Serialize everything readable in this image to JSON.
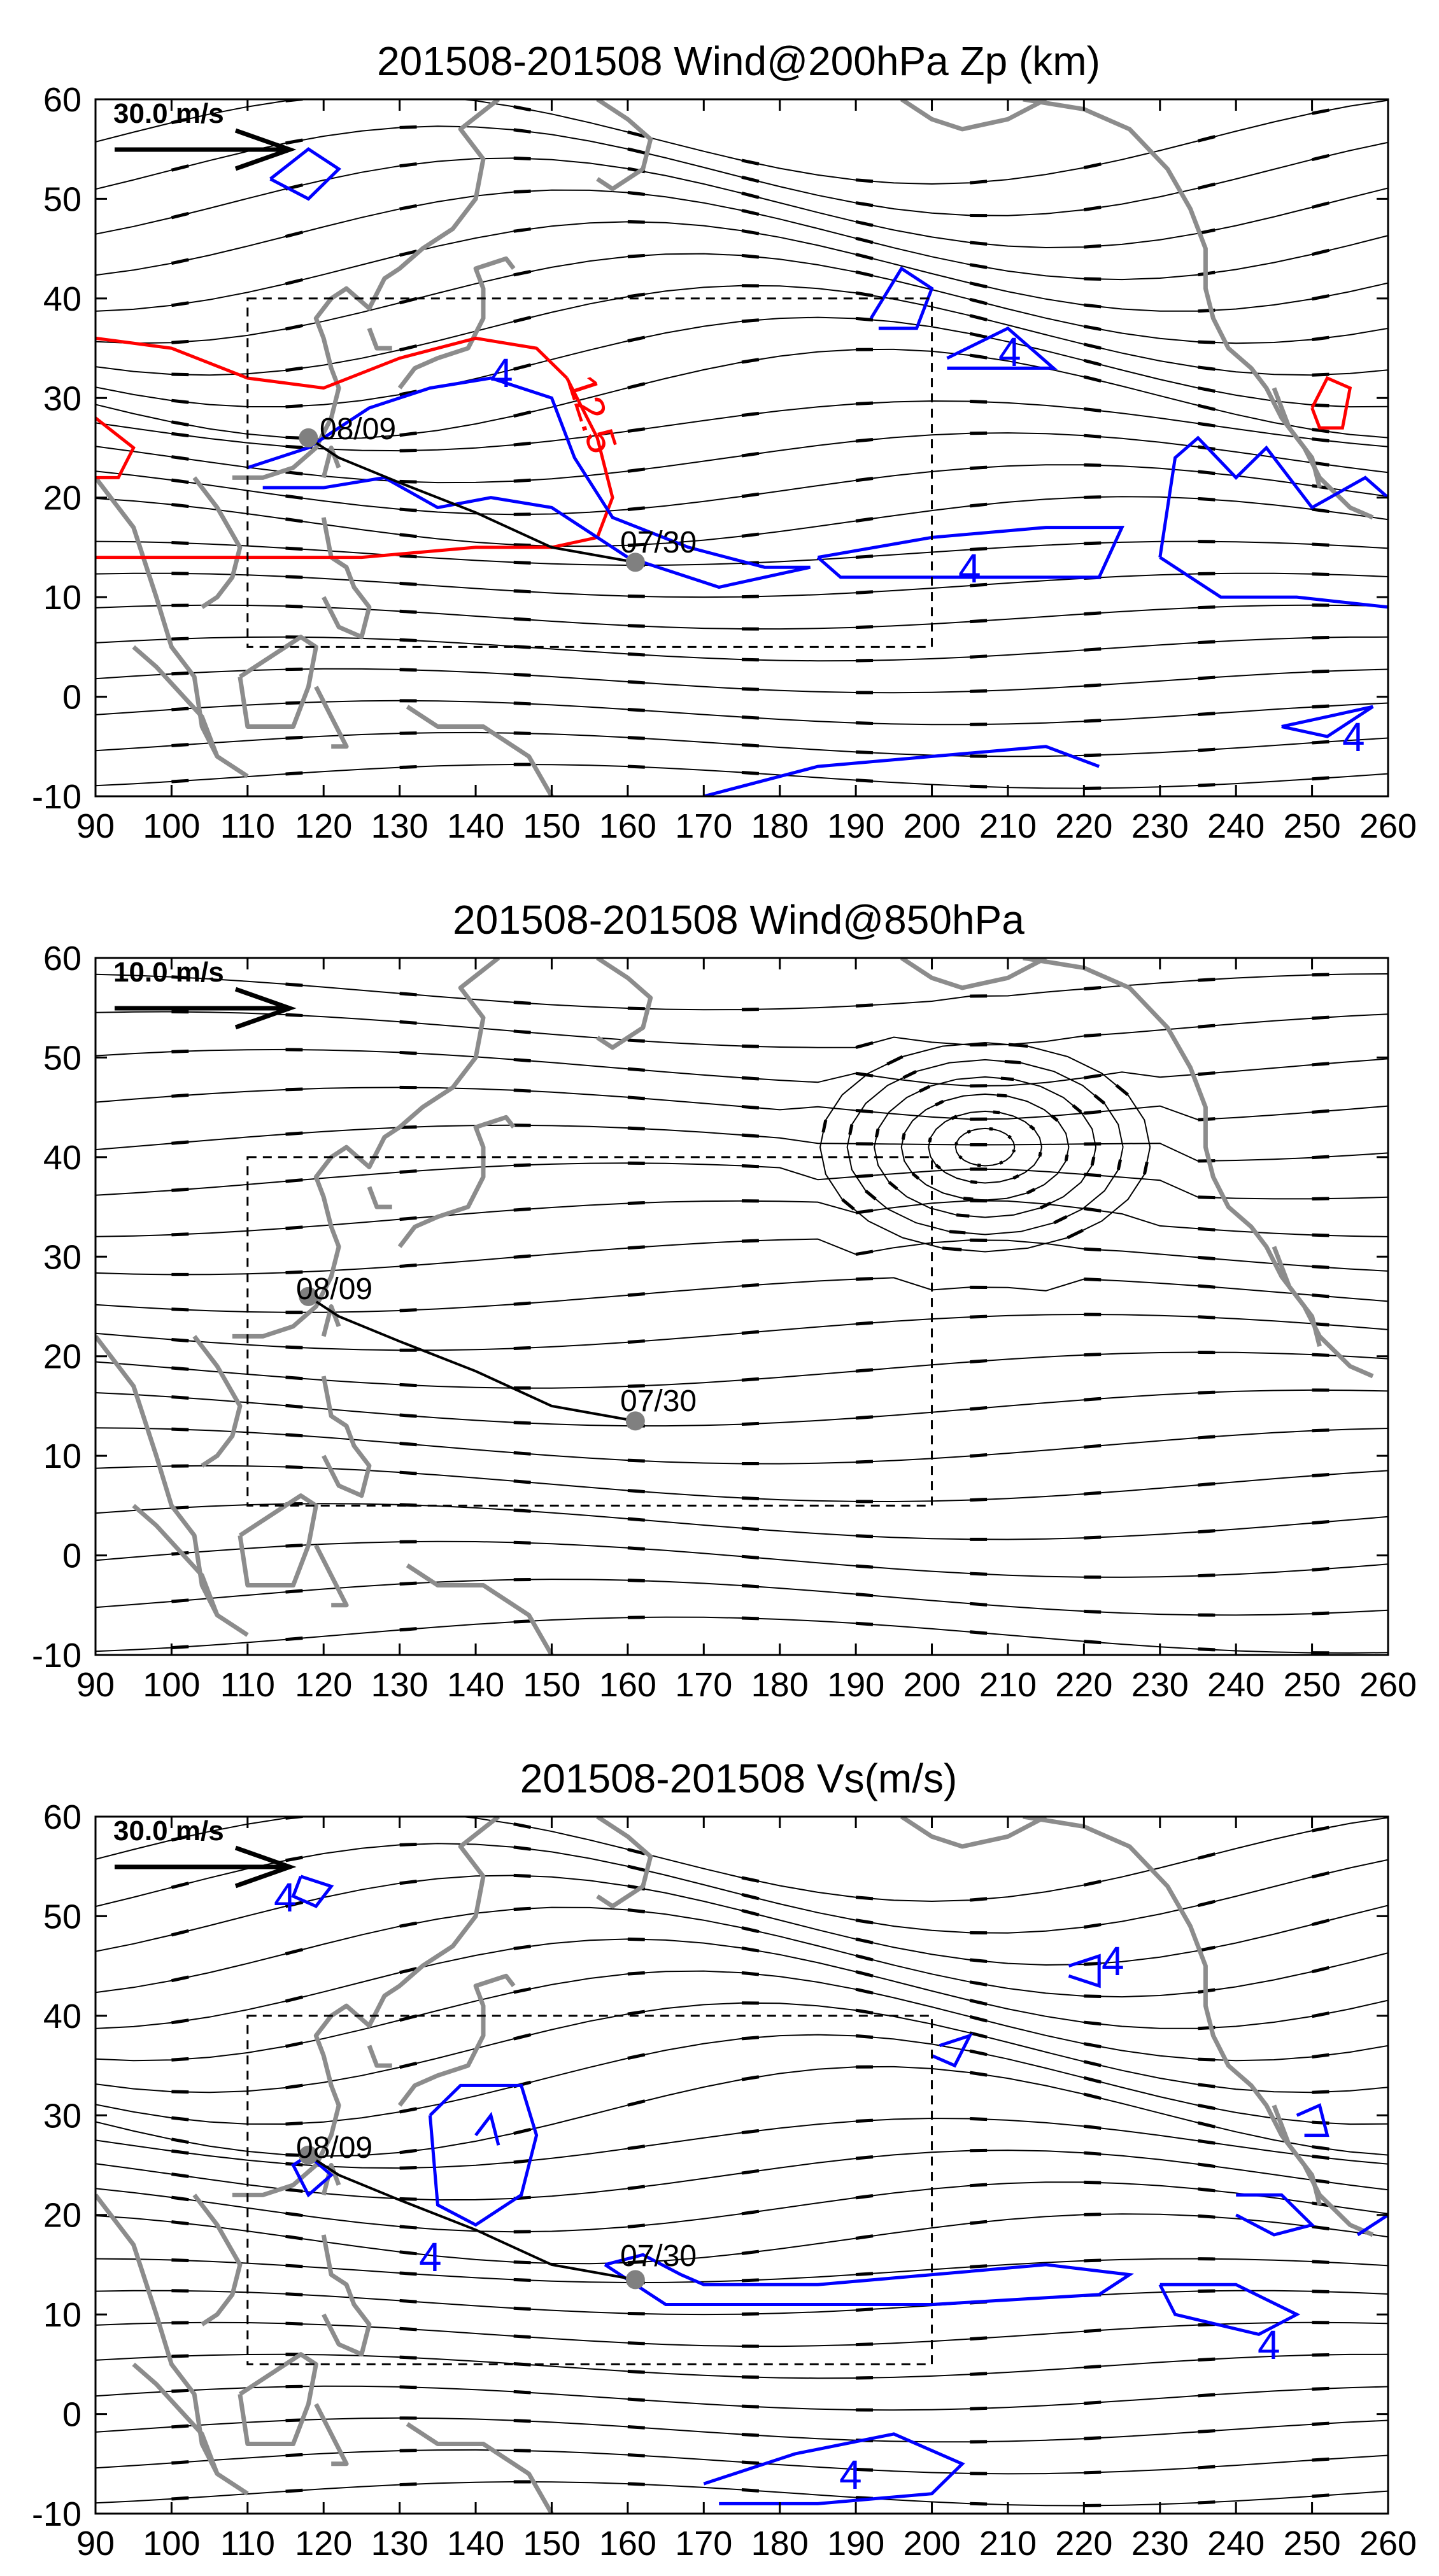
{
  "chart_data": [
    {
      "type": "streamline",
      "title": "201508-201508 Wind@200hPa Zp (km)",
      "xlim": [
        90,
        260
      ],
      "ylim": [
        -10,
        60
      ],
      "xticks": [
        "90",
        "100",
        "110",
        "120",
        "130",
        "140",
        "150",
        "160",
        "170",
        "180",
        "190",
        "200",
        "210",
        "220",
        "230",
        "240",
        "250",
        "260"
      ],
      "yticks": [
        "60",
        "50",
        "40",
        "30",
        "20",
        "10",
        "0",
        "-10"
      ],
      "reference_vector": {
        "label": "30.0 m/s"
      },
      "track_labels": {
        "start": "07/30",
        "end": "08/09"
      },
      "track": [
        [
          161,
          13.5
        ],
        [
          150,
          15
        ],
        [
          140,
          18.5
        ],
        [
          130,
          21.5
        ],
        [
          122,
          24
        ],
        [
          118,
          26
        ]
      ],
      "box": {
        "lon": [
          110,
          200
        ],
        "lat": [
          5,
          40
        ]
      },
      "contours": [
        {
          "level": "12.5",
          "color": "#ff0000"
        },
        {
          "level": "4",
          "color": "#0000ff"
        }
      ]
    },
    {
      "type": "streamline",
      "title": "201508-201508 Wind@850hPa",
      "xlim": [
        90,
        260
      ],
      "ylim": [
        -10,
        60
      ],
      "xticks": [
        "90",
        "100",
        "110",
        "120",
        "130",
        "140",
        "150",
        "160",
        "170",
        "180",
        "190",
        "200",
        "210",
        "220",
        "230",
        "240",
        "250",
        "260"
      ],
      "yticks": [
        "60",
        "50",
        "40",
        "30",
        "20",
        "10",
        "0",
        "-10"
      ],
      "reference_vector": {
        "label": "10.0 m/s"
      },
      "track_labels": {
        "start": "07/30",
        "end": "08/09"
      },
      "track": [
        [
          161,
          13.5
        ],
        [
          150,
          15
        ],
        [
          140,
          18.5
        ],
        [
          130,
          21.5
        ],
        [
          122,
          24
        ],
        [
          118,
          26
        ]
      ],
      "box": {
        "lon": [
          110,
          200
        ],
        "lat": [
          5,
          40
        ]
      },
      "contours": []
    },
    {
      "type": "streamline",
      "title": "201508-201508 Vs(m/s)",
      "xlim": [
        90,
        260
      ],
      "ylim": [
        -10,
        60
      ],
      "xticks": [
        "90",
        "100",
        "110",
        "120",
        "130",
        "140",
        "150",
        "160",
        "170",
        "180",
        "190",
        "200",
        "210",
        "220",
        "230",
        "240",
        "250",
        "260"
      ],
      "yticks": [
        "60",
        "50",
        "40",
        "30",
        "20",
        "10",
        "0",
        "-10"
      ],
      "reference_vector": {
        "label": "30.0 m/s"
      },
      "track_labels": {
        "start": "07/30",
        "end": "08/09"
      },
      "track": [
        [
          161,
          13.5
        ],
        [
          150,
          15
        ],
        [
          140,
          18.5
        ],
        [
          130,
          21.5
        ],
        [
          122,
          24
        ],
        [
          118,
          26
        ]
      ],
      "box": {
        "lon": [
          110,
          200
        ],
        "lat": [
          5,
          40
        ]
      },
      "contours": [
        {
          "level": "4",
          "color": "#0000ff"
        }
      ]
    }
  ]
}
